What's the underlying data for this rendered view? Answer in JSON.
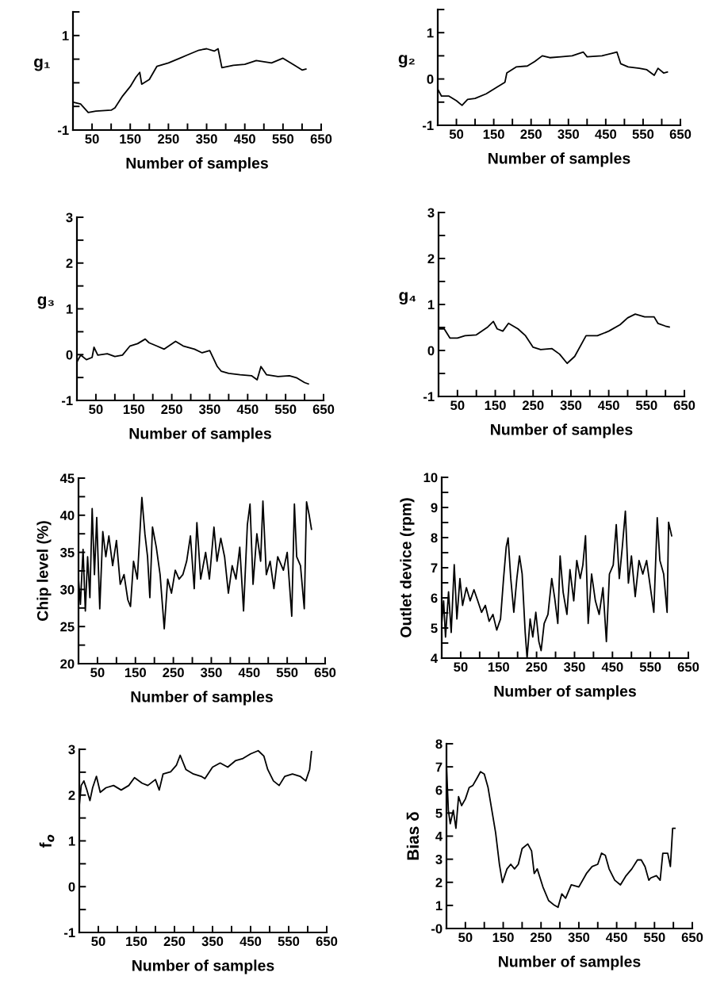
{
  "chart_data": [
    {
      "type": "line",
      "ylabel": "g₁",
      "xlabel": "Number of samples",
      "xlim": [
        0,
        650
      ],
      "xticks": [
        50,
        {
          "value": 100,
          "label": null
        },
        150,
        {
          "value": 200,
          "label": null
        },
        250,
        {
          "value": 300,
          "label": null
        },
        350,
        {
          "value": 400,
          "label": null
        },
        450,
        {
          "value": 500,
          "label": null
        },
        550,
        {
          "value": 600,
          "label": null
        },
        650
      ],
      "ylim": [
        -1,
        1.5
      ],
      "yticks": [
        -1,
        {
          "value": -0.5,
          "label": null
        },
        {
          "value": 0,
          "label": null
        },
        {
          "value": 0.5,
          "label": null
        },
        1,
        {
          "value": 1.5,
          "label": null
        }
      ],
      "grid": false,
      "series": [
        {
          "color": "#000000",
          "x": [
            0,
            20,
            40,
            60,
            100,
            110,
            130,
            150,
            165,
            175,
            180,
            200,
            220,
            250,
            280,
            300,
            330,
            350,
            370,
            380,
            390,
            420,
            450,
            480,
            520,
            550,
            580,
            600,
            610
          ],
          "values": [
            -0.41,
            -0.45,
            -0.63,
            -0.6,
            -0.58,
            -0.53,
            -0.28,
            -0.08,
            0.12,
            0.22,
            -0.03,
            0.07,
            0.35,
            0.42,
            0.52,
            0.59,
            0.69,
            0.72,
            0.67,
            0.72,
            0.32,
            0.37,
            0.39,
            0.47,
            0.42,
            0.52,
            0.37,
            0.27,
            0.29
          ]
        }
      ]
    },
    {
      "type": "line",
      "ylabel": "g₂",
      "xlabel": "Number of samples",
      "xlim": [
        0,
        650
      ],
      "xticks": [
        50,
        {
          "value": 100,
          "label": null
        },
        150,
        {
          "value": 200,
          "label": null
        },
        250,
        {
          "value": 300,
          "label": null
        },
        350,
        {
          "value": 400,
          "label": null
        },
        450,
        {
          "value": 500,
          "label": null
        },
        550,
        {
          "value": 600,
          "label": null
        },
        650
      ],
      "ylim": [
        -1,
        1.5
      ],
      "yticks": [
        -1,
        {
          "value": -0.5,
          "label": null
        },
        0,
        {
          "value": 0.5,
          "label": null
        },
        1,
        {
          "value": 1.5,
          "label": null
        }
      ],
      "grid": false,
      "series": [
        {
          "color": "#000000",
          "x": [
            0,
            10,
            30,
            50,
            65,
            80,
            100,
            130,
            160,
            180,
            185,
            210,
            240,
            260,
            280,
            300,
            330,
            360,
            390,
            400,
            440,
            470,
            480,
            490,
            510,
            540,
            560,
            580,
            590,
            605,
            615
          ],
          "values": [
            -0.22,
            -0.37,
            -0.37,
            -0.47,
            -0.57,
            -0.44,
            -0.42,
            -0.32,
            -0.17,
            -0.07,
            0.13,
            0.26,
            0.28,
            0.38,
            0.5,
            0.46,
            0.48,
            0.5,
            0.58,
            0.48,
            0.5,
            0.56,
            0.58,
            0.33,
            0.26,
            0.23,
            0.2,
            0.08,
            0.23,
            0.13,
            0.15
          ]
        }
      ]
    },
    {
      "type": "line",
      "ylabel": "g₃",
      "xlabel": "Number of samples",
      "xlim": [
        0,
        650
      ],
      "xticks": [
        50,
        {
          "value": 100,
          "label": null
        },
        150,
        {
          "value": 200,
          "label": null
        },
        250,
        {
          "value": 300,
          "label": null
        },
        350,
        {
          "value": 400,
          "label": null
        },
        450,
        {
          "value": 500,
          "label": null
        },
        550,
        {
          "value": 600,
          "label": null
        },
        650
      ],
      "ylim": [
        -1,
        3
      ],
      "yticks": [
        -1,
        {
          "value": -0.5,
          "label": null
        },
        0,
        {
          "value": 0.5,
          "label": null
        },
        1,
        {
          "value": 1.5,
          "label": null
        },
        2,
        {
          "value": 2.5,
          "label": null
        },
        3
      ],
      "grid": false,
      "series": [
        {
          "color": "#000000",
          "x": [
            0,
            10,
            25,
            40,
            45,
            55,
            80,
            100,
            120,
            140,
            160,
            180,
            190,
            210,
            230,
            260,
            280,
            310,
            330,
            350,
            370,
            380,
            400,
            430,
            460,
            475,
            485,
            500,
            530,
            560,
            580,
            600,
            610
          ],
          "values": [
            -0.16,
            -0.01,
            -0.11,
            -0.06,
            0.16,
            -0.01,
            0.02,
            -0.04,
            -0.01,
            0.19,
            0.24,
            0.34,
            0.26,
            0.19,
            0.12,
            0.29,
            0.19,
            0.12,
            0.04,
            0.09,
            -0.26,
            -0.36,
            -0.41,
            -0.44,
            -0.46,
            -0.55,
            -0.26,
            -0.44,
            -0.48,
            -0.46,
            -0.51,
            -0.61,
            -0.64
          ]
        }
      ]
    },
    {
      "type": "line",
      "ylabel": "g₄",
      "xlabel": "Number of samples",
      "xlim": [
        0,
        650
      ],
      "xticks": [
        50,
        {
          "value": 100,
          "label": null
        },
        150,
        {
          "value": 200,
          "label": null
        },
        250,
        {
          "value": 300,
          "label": null
        },
        350,
        {
          "value": 400,
          "label": null
        },
        450,
        {
          "value": 500,
          "label": null
        },
        550,
        {
          "value": 600,
          "label": null
        },
        650
      ],
      "ylim": [
        -1,
        3
      ],
      "yticks": [
        -1,
        {
          "value": -0.5,
          "label": null
        },
        0,
        {
          "value": 0.5,
          "label": null
        },
        1,
        {
          "value": 1.5,
          "label": null
        },
        2,
        {
          "value": 2.5,
          "label": null
        },
        3
      ],
      "grid": false,
      "series": [
        {
          "color": "#000000",
          "x": [
            0,
            15,
            30,
            50,
            70,
            100,
            130,
            145,
            155,
            170,
            185,
            210,
            230,
            250,
            270,
            300,
            320,
            340,
            360,
            390,
            420,
            450,
            480,
            500,
            520,
            545,
            570,
            580,
            600,
            610
          ],
          "values": [
            0.47,
            0.47,
            0.27,
            0.27,
            0.32,
            0.34,
            0.51,
            0.63,
            0.47,
            0.42,
            0.59,
            0.47,
            0.32,
            0.07,
            0.02,
            0.04,
            -0.08,
            -0.28,
            -0.13,
            0.32,
            0.32,
            0.42,
            0.56,
            0.71,
            0.79,
            0.73,
            0.73,
            0.59,
            0.53,
            0.51
          ]
        }
      ]
    },
    {
      "type": "line",
      "ylabel": "Chip level (%)",
      "xlabel": "Number of samples",
      "xlim": [
        0,
        650
      ],
      "xticks": [
        50,
        {
          "value": 100,
          "label": null
        },
        150,
        {
          "value": 200,
          "label": null
        },
        250,
        {
          "value": 300,
          "label": null
        },
        350,
        {
          "value": 400,
          "label": null
        },
        450,
        {
          "value": 500,
          "label": null
        },
        550,
        {
          "value": 600,
          "label": null
        },
        650
      ],
      "ylim": [
        20,
        45
      ],
      "yticks": [
        20,
        {
          "value": 22.5,
          "label": null
        },
        25,
        {
          "value": 27.5,
          "label": null
        },
        30,
        {
          "value": 32.5,
          "label": null
        },
        35,
        {
          "value": 37.5,
          "label": null
        },
        40,
        {
          "value": 42.5,
          "label": null
        },
        45
      ],
      "grid": false,
      "series": [
        {
          "color": "#000000",
          "x": [
            0,
            5,
            12,
            18,
            24,
            30,
            36,
            42,
            48,
            56,
            64,
            72,
            80,
            90,
            100,
            110,
            120,
            130,
            137,
            145,
            155,
            167,
            175,
            182,
            188,
            195,
            205,
            215,
            226,
            235,
            245,
            255,
            265,
            275,
            285,
            295,
            305,
            312,
            322,
            335,
            345,
            357,
            365,
            375,
            385,
            395,
            405,
            415,
            425,
            435,
            445,
            452,
            460,
            470,
            480,
            486,
            495,
            505,
            515,
            525,
            540,
            550,
            562,
            569,
            575,
            585,
            595,
            601,
            608,
            614
          ],
          "values": [
            31.4,
            28,
            35.4,
            27.1,
            34.4,
            28.9,
            40.9,
            32,
            39.7,
            27.4,
            37.8,
            34.4,
            37.2,
            33.2,
            36.6,
            30.7,
            32,
            28.6,
            27.7,
            33.8,
            31.4,
            42.4,
            37.5,
            34.4,
            28.9,
            38.4,
            35.7,
            32,
            24.7,
            31.4,
            29.5,
            32.6,
            31.4,
            32,
            33.8,
            37.2,
            30.1,
            39,
            31.4,
            35,
            31.4,
            38.4,
            33.8,
            36.9,
            34.4,
            29.5,
            33.2,
            31.4,
            35.7,
            27.1,
            38.7,
            41.5,
            30.7,
            37.5,
            33.8,
            41.9,
            32,
            33.8,
            30.1,
            34.4,
            32.6,
            35,
            26.4,
            41.5,
            34.4,
            33.2,
            27.4,
            41.8,
            40,
            38.1
          ]
        }
      ]
    },
    {
      "type": "line",
      "ylabel": "Outlet device (rpm)",
      "xlabel": "Number of samples",
      "xlim": [
        0,
        650
      ],
      "xticks": [
        50,
        {
          "value": 100,
          "label": null
        },
        150,
        {
          "value": 200,
          "label": null
        },
        250,
        {
          "value": 300,
          "label": null
        },
        350,
        {
          "value": 400,
          "label": null
        },
        450,
        {
          "value": 500,
          "label": null
        },
        550,
        {
          "value": 600,
          "label": null
        },
        650
      ],
      "ylim": [
        4,
        10
      ],
      "yticks": [
        4,
        {
          "value": 4.5,
          "label": null
        },
        5,
        {
          "value": 5.5,
          "label": null
        },
        6,
        {
          "value": 6.5,
          "label": null
        },
        7,
        {
          "value": 7.5,
          "label": null
        },
        8,
        {
          "value": 8.5,
          "label": null
        },
        9,
        {
          "value": 9.5,
          "label": null
        },
        10
      ],
      "grid": false,
      "series": [
        {
          "color": "#000000",
          "x": [
            0,
            5,
            10,
            18,
            25,
            33,
            40,
            48,
            55,
            65,
            75,
            85,
            95,
            105,
            115,
            125,
            135,
            145,
            155,
            163,
            170,
            175,
            182,
            190,
            198,
            205,
            212,
            220,
            225,
            233,
            240,
            248,
            256,
            262,
            270,
            280,
            290,
            298,
            306,
            312,
            320,
            330,
            338,
            348,
            356,
            365,
            372,
            379,
            386,
            395,
            405,
            415,
            425,
            434,
            442,
            452,
            460,
            468,
            476,
            484,
            492,
            500,
            510,
            520,
            530,
            540,
            550,
            559,
            568,
            575,
            585,
            594,
            598,
            606
          ],
          "values": [
            5.15,
            5.9,
            4.7,
            6.2,
            4.85,
            7.1,
            5.3,
            6.64,
            5.75,
            6.34,
            5.9,
            6.27,
            5.9,
            5.52,
            5.75,
            5.22,
            5.45,
            4.93,
            5.3,
            6.64,
            7.69,
            7.99,
            6.64,
            5.52,
            6.64,
            7.39,
            6.79,
            4.85,
            4,
            5.3,
            4.7,
            5.52,
            4.55,
            4.25,
            5.15,
            5.45,
            6.64,
            5.97,
            5.15,
            7.39,
            6.19,
            5.45,
            6.94,
            5.9,
            7.24,
            6.64,
            7.09,
            8.06,
            5.15,
            6.79,
            5.9,
            5.45,
            6.34,
            4.55,
            6.79,
            7.09,
            8.43,
            6.64,
            7.69,
            8.88,
            6.49,
            7.39,
            6.04,
            7.24,
            6.79,
            7.24,
            6.34,
            5.52,
            8.66,
            7.24,
            6.79,
            5.52,
            8.51,
            8.06
          ]
        }
      ]
    },
    {
      "type": "line",
      "ylabel": "f$_{o}$",
      "xlabel": "Number of samples",
      "xlim": [
        0,
        650
      ],
      "xticks": [
        50,
        {
          "value": 100,
          "label": null
        },
        150,
        {
          "value": 200,
          "label": null
        },
        250,
        {
          "value": 300,
          "label": null
        },
        350,
        {
          "value": 400,
          "label": null
        },
        450,
        {
          "value": 500,
          "label": null
        },
        550,
        {
          "value": 600,
          "label": null
        },
        650
      ],
      "ylim": [
        -1,
        3
      ],
      "yticks": [
        -1,
        {
          "value": -0.5,
          "label": null
        },
        0,
        {
          "value": 0.5,
          "label": null
        },
        1,
        {
          "value": 1.5,
          "label": null
        },
        2,
        {
          "value": 2.5,
          "label": null
        },
        3
      ],
      "grid": false,
      "series": [
        {
          "color": "#000000",
          "x": [
            0,
            5,
            12,
            20,
            28,
            35,
            45,
            55,
            70,
            90,
            110,
            130,
            145,
            165,
            180,
            200,
            210,
            220,
            240,
            255,
            265,
            280,
            300,
            320,
            330,
            350,
            370,
            390,
            410,
            430,
            450,
            470,
            485,
            495,
            510,
            525,
            540,
            560,
            580,
            595,
            605,
            610
          ],
          "values": [
            1.77,
            2.21,
            2.31,
            2.11,
            1.88,
            2.16,
            2.41,
            2.06,
            2.16,
            2.21,
            2.11,
            2.21,
            2.38,
            2.26,
            2.21,
            2.34,
            2.11,
            2.46,
            2.51,
            2.65,
            2.87,
            2.56,
            2.46,
            2.41,
            2.36,
            2.61,
            2.7,
            2.61,
            2.75,
            2.8,
            2.9,
            2.97,
            2.85,
            2.56,
            2.31,
            2.21,
            2.41,
            2.46,
            2.41,
            2.31,
            2.56,
            2.95
          ]
        }
      ]
    },
    {
      "type": "line",
      "ylabel": "Bias δ",
      "xlabel": "Number of samples",
      "xlim": [
        0,
        650
      ],
      "xticks": [
        50,
        {
          "value": 100,
          "label": null
        },
        150,
        {
          "value": 200,
          "label": null
        },
        250,
        {
          "value": 300,
          "label": null
        },
        350,
        {
          "value": 400,
          "label": null
        },
        450,
        {
          "value": 500,
          "label": null
        },
        550,
        {
          "value": 600,
          "label": null
        },
        650
      ],
      "ylim": [
        0,
        8
      ],
      "yticks": [
        {
          "value": 0,
          "label": "-0"
        },
        1,
        2,
        3,
        4,
        5,
        6,
        7,
        8
      ],
      "grid": false,
      "series": [
        {
          "color": "#000000",
          "x": [
            0,
            5,
            10,
            18,
            25,
            32,
            40,
            50,
            60,
            70,
            80,
            90,
            100,
            110,
            120,
            130,
            140,
            148,
            160,
            170,
            180,
            190,
            200,
            215,
            225,
            232,
            240,
            255,
            270,
            285,
            295,
            305,
            315,
            330,
            350,
            370,
            385,
            400,
            410,
            420,
            430,
            445,
            460,
            475,
            490,
            505,
            515,
            525,
            535,
            540,
            555,
            565,
            572,
            585,
            592,
            598,
            604
          ],
          "values": [
            7.08,
            5.12,
            4.54,
            5.12,
            4.34,
            5.71,
            5.32,
            5.61,
            6.1,
            6.2,
            6.49,
            6.79,
            6.69,
            6.1,
            5.12,
            4.14,
            2.78,
            1.99,
            2.58,
            2.78,
            2.58,
            2.78,
            3.46,
            3.66,
            3.36,
            2.38,
            2.58,
            1.8,
            1.21,
            1.01,
            0.92,
            1.5,
            1.31,
            1.89,
            1.8,
            2.38,
            2.68,
            2.78,
            3.26,
            3.17,
            2.58,
            2.09,
            1.89,
            2.29,
            2.58,
            2.97,
            2.97,
            2.68,
            2.09,
            2.19,
            2.29,
            2.09,
            3.26,
            3.26,
            2.68,
            4.34,
            4.34
          ]
        }
      ]
    }
  ]
}
